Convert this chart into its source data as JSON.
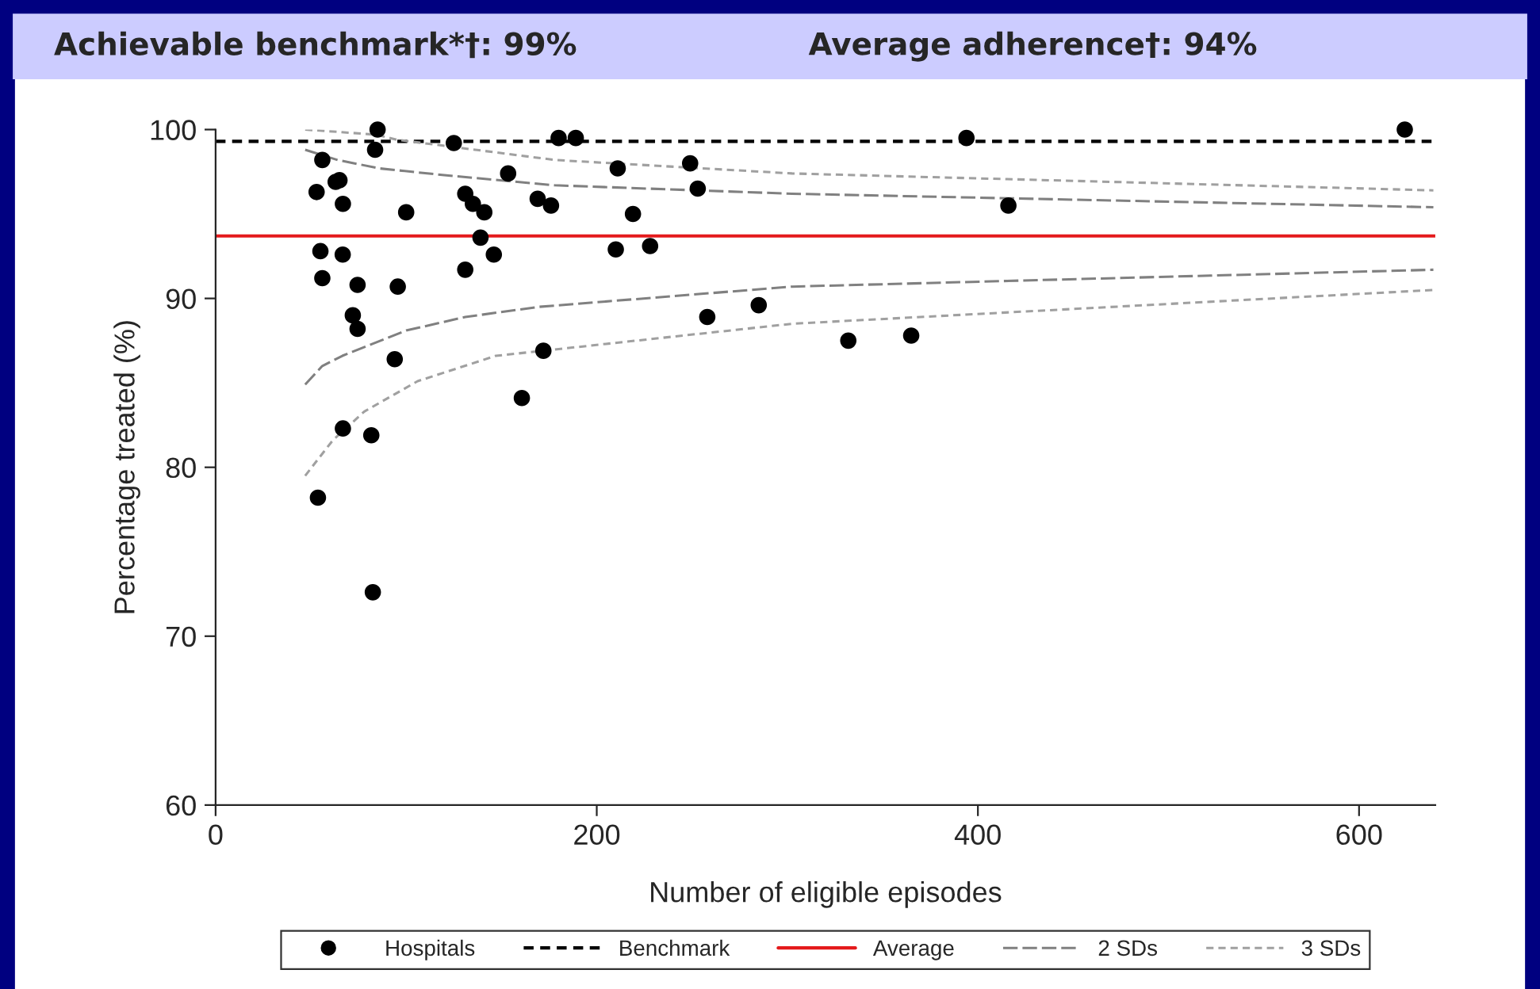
{
  "chart_data": {
    "type": "scatter",
    "xlabel": "Number of eligible episodes",
    "ylabel": "Percentage treated (%)",
    "annotations": [
      "Achievable benchmark*†: 99%",
      "Average adherence†: 94%"
    ],
    "xlim": [
      0,
      640
    ],
    "xticks": [
      0,
      200,
      400,
      600
    ],
    "ylim": [
      60,
      100
    ],
    "yticks": [
      60,
      70,
      80,
      90,
      100
    ],
    "grid": false,
    "legend": "bottom",
    "ref_lines": [
      {
        "axis": "y",
        "value": 99.3,
        "label": "Benchmark",
        "color": "#000000",
        "line_style": "dotted"
      },
      {
        "axis": "y",
        "value": 93.7,
        "label": "Average",
        "color": "#e41a1c",
        "line_style": "solid"
      }
    ],
    "series": [
      {
        "name": "Hospitals",
        "marker": "circle",
        "color": "#000000",
        "x": [
          85,
          83.7,
          125,
          153.5,
          56,
          63,
          65,
          53,
          66.8,
          100,
          131,
          135,
          141,
          139,
          146,
          131,
          55,
          66.7,
          56,
          74.5,
          95.6,
          72,
          74.5,
          94,
          160.7,
          66.8,
          81.7,
          53.7,
          82.5,
          180,
          189,
          169,
          176,
          211,
          249,
          253,
          219,
          210,
          228,
          258,
          285,
          172,
          394,
          624,
          416,
          332,
          365
        ],
        "values": [
          100,
          98.8,
          99.2,
          97.4,
          98.2,
          96.9,
          97.0,
          96.3,
          95.6,
          95.1,
          96.2,
          95.6,
          95.1,
          93.6,
          92.6,
          91.7,
          92.8,
          92.6,
          91.2,
          90.8,
          90.7,
          89.0,
          88.2,
          86.4,
          84.1,
          82.3,
          81.9,
          78.2,
          72.6,
          99.5,
          99.5,
          95.9,
          95.5,
          97.7,
          98.0,
          96.5,
          95.0,
          92.9,
          93.1,
          88.9,
          89.6,
          86.9,
          99.5,
          100,
          95.5,
          87.5,
          87.8
        ]
      },
      {
        "name": "2 SDs",
        "type": "line",
        "color": "#808080",
        "line_style": "dashed",
        "x": [
          47,
          64,
          86,
          120,
          178,
          302.5,
          639
        ],
        "values": [
          98.8,
          98.2,
          97.7,
          97.3,
          96.7,
          96.2,
          95.4
        ]
      },
      {
        "type": "line",
        "color": "#808080",
        "line_style": "dashed",
        "x": [
          47,
          56,
          66.5,
          100,
          131,
          169.5,
          302.5,
          639
        ],
        "values": [
          84.9,
          86.0,
          86.6,
          88.1,
          88.9,
          89.5,
          90.7,
          91.7
        ]
      },
      {
        "name": "3 SDs",
        "type": "line",
        "color": "#a0a0a0",
        "line_style": "dotted",
        "x": [
          47,
          84,
          95,
          178,
          302.5,
          639
        ],
        "values": [
          100.0,
          99.7,
          99.4,
          98.2,
          97.4,
          96.4
        ]
      },
      {
        "type": "line",
        "color": "#a0a0a0",
        "line_style": "dotted",
        "x": [
          47,
          61.5,
          78,
          106,
          147,
          302.5,
          639
        ],
        "values": [
          79.5,
          81.6,
          83.3,
          85.1,
          86.6,
          88.5,
          90.5
        ]
      }
    ]
  }
}
